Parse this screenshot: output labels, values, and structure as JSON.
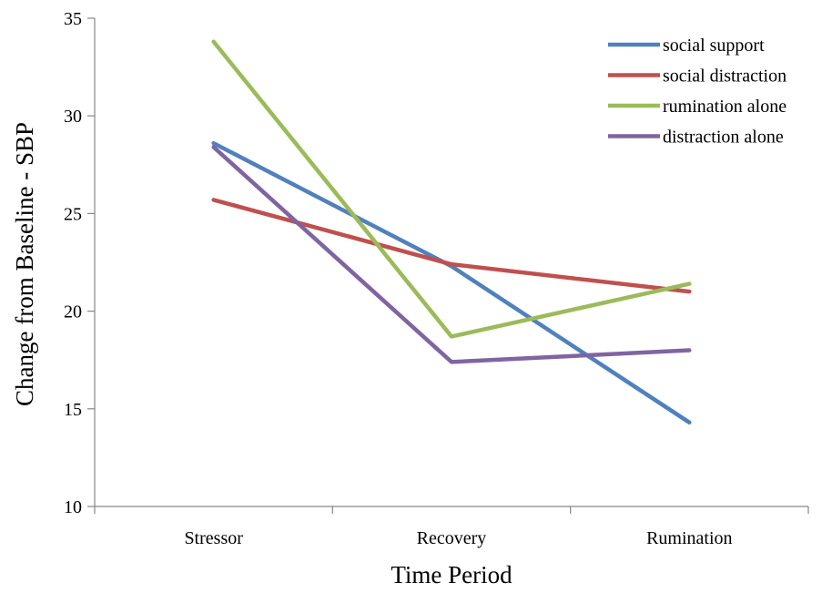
{
  "chart_data": {
    "type": "line",
    "title": "",
    "xlabel": "Time Period",
    "ylabel": "Change from Baseline - SBP",
    "categories": [
      "Stressor",
      "Recovery",
      "Rumination"
    ],
    "ylim": [
      10,
      35
    ],
    "yticks": [
      10,
      15,
      20,
      25,
      30,
      35
    ],
    "grid": false,
    "legend_position": "top-right",
    "series": [
      {
        "name": "social support",
        "color": "#4f81bd",
        "values": [
          28.6,
          22.3,
          14.3
        ]
      },
      {
        "name": "social distraction",
        "color": "#c0504d",
        "values": [
          25.7,
          22.4,
          21.0
        ]
      },
      {
        "name": "rumination alone",
        "color": "#9bbb59",
        "values": [
          33.8,
          18.7,
          21.4
        ]
      },
      {
        "name": "distraction alone",
        "color": "#8064a2",
        "values": [
          28.4,
          17.4,
          18.0
        ]
      }
    ]
  }
}
